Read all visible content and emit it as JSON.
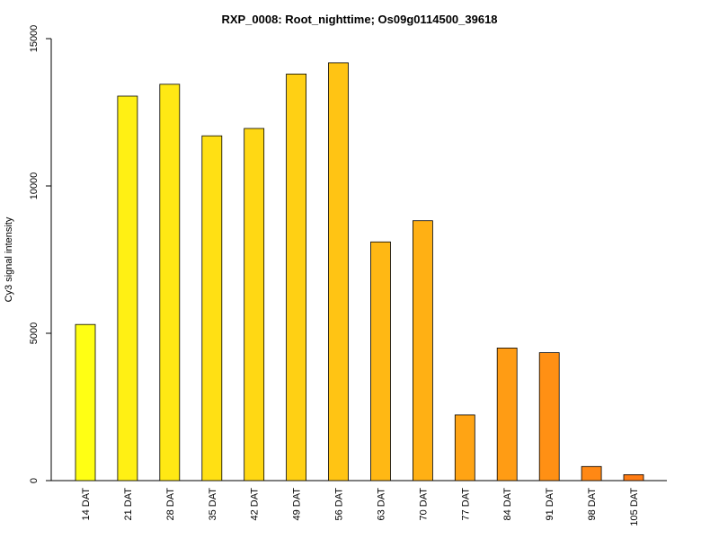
{
  "chart_data": {
    "type": "bar",
    "title": "RXP_0008: Root_nighttime; Os09g0114500_39618",
    "xlabel": "",
    "ylabel": "Cy3 signal intensity",
    "ylim": [
      0,
      15000
    ],
    "yticks": [
      "0",
      "5000",
      "10000",
      "15000"
    ],
    "grid": false,
    "categories": [
      "14 DAT",
      "21 DAT",
      "28 DAT",
      "35 DAT",
      "42 DAT",
      "49 DAT",
      "56 DAT",
      "63 DAT",
      "70 DAT",
      "77 DAT",
      "84 DAT",
      "91 DAT",
      "98 DAT",
      "105 DAT"
    ],
    "values": [
      5300,
      13050,
      13450,
      11700,
      11950,
      13800,
      14180,
      8100,
      8820,
      2230,
      4500,
      4340,
      480,
      200
    ],
    "colors": [
      "#FFFF14",
      "#FFF014",
      "#FFE814",
      "#FFE014",
      "#FFD814",
      "#FFD014",
      "#FFC414",
      "#FFB814",
      "#FFB014",
      "#FFA414",
      "#FF9C14",
      "#FF9014",
      "#FF8814",
      "#FF7C14"
    ]
  }
}
